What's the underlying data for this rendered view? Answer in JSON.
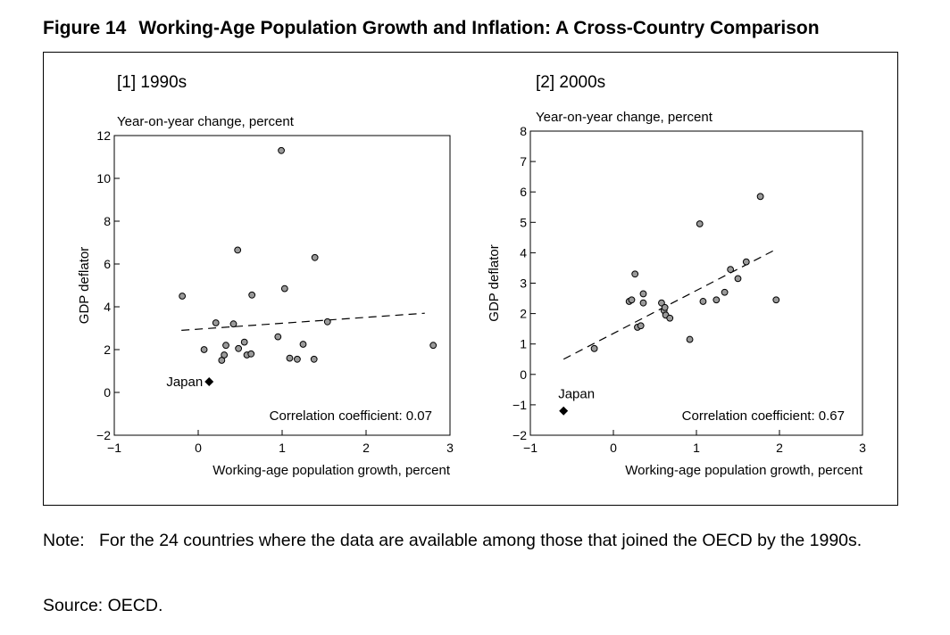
{
  "figure": {
    "number": "Figure 14",
    "title": "Working-Age Population Growth and Inflation: A Cross-Country Comparison"
  },
  "note": {
    "label": "Note:",
    "text": "For the 24 countries where the data are available among those that joined the OECD by the 1990s."
  },
  "source": "Source: OECD.",
  "colors": {
    "marker_fill": "#9a9a9a",
    "axis": "#000000",
    "japan": "#000000"
  },
  "chart_data": [
    {
      "type": "scatter",
      "title": "[1] 1990s",
      "unit_label": "Year-on-year change, percent",
      "ylabel": "GDP deflator",
      "xlabel": "Working-age population growth, percent",
      "xlim": [
        -1,
        3
      ],
      "ylim": [
        -2,
        12
      ],
      "xticks": [
        -1,
        0,
        1,
        2,
        3
      ],
      "yticks": [
        -2,
        0,
        2,
        4,
        6,
        8,
        10,
        12
      ],
      "xtick_labels": [
        "−1",
        "0",
        "1",
        "2",
        "3"
      ],
      "ytick_labels": [
        "−2",
        "0",
        "2",
        "4",
        "6",
        "8",
        "10",
        "12"
      ],
      "points": [
        {
          "x": -0.19,
          "y": 4.5
        },
        {
          "x": 0.07,
          "y": 2.0
        },
        {
          "x": 0.21,
          "y": 3.25
        },
        {
          "x": 0.28,
          "y": 1.5
        },
        {
          "x": 0.31,
          "y": 1.75
        },
        {
          "x": 0.33,
          "y": 2.2
        },
        {
          "x": 0.42,
          "y": 3.2
        },
        {
          "x": 0.47,
          "y": 6.65
        },
        {
          "x": 0.48,
          "y": 2.05
        },
        {
          "x": 0.55,
          "y": 2.35
        },
        {
          "x": 0.58,
          "y": 1.75
        },
        {
          "x": 0.63,
          "y": 1.8
        },
        {
          "x": 0.64,
          "y": 4.55
        },
        {
          "x": 0.95,
          "y": 2.6
        },
        {
          "x": 0.99,
          "y": 11.3
        },
        {
          "x": 1.03,
          "y": 4.85
        },
        {
          "x": 1.09,
          "y": 1.6
        },
        {
          "x": 1.18,
          "y": 1.55
        },
        {
          "x": 1.25,
          "y": 2.25
        },
        {
          "x": 1.38,
          "y": 1.55
        },
        {
          "x": 1.39,
          "y": 6.3
        },
        {
          "x": 1.54,
          "y": 3.3
        },
        {
          "x": 2.8,
          "y": 2.2
        }
      ],
      "japan": {
        "label": "Japan",
        "x": 0.13,
        "y": 0.5
      },
      "trendline": {
        "x": [
          -0.2,
          2.7
        ],
        "y": [
          2.9,
          3.7
        ]
      },
      "annotation": "Correlation coefficient: 0.07"
    },
    {
      "type": "scatter",
      "title": "[2] 2000s",
      "unit_label": "Year-on-year change, percent",
      "ylabel": "GDP deflator",
      "xlabel": "Working-age population growth, percent",
      "xlim": [
        -1,
        3
      ],
      "ylim": [
        -2,
        8
      ],
      "xticks": [
        -1,
        0,
        1,
        2,
        3
      ],
      "yticks": [
        -2,
        -1,
        0,
        1,
        2,
        3,
        4,
        5,
        6,
        7,
        8
      ],
      "xtick_labels": [
        "−1",
        "0",
        "1",
        "2",
        "3"
      ],
      "ytick_labels": [
        "−2",
        "−1",
        "0",
        "1",
        "2",
        "3",
        "4",
        "5",
        "6",
        "7",
        "8"
      ],
      "points": [
        {
          "x": -0.23,
          "y": 0.85
        },
        {
          "x": 0.19,
          "y": 2.4
        },
        {
          "x": 0.22,
          "y": 2.45
        },
        {
          "x": 0.26,
          "y": 3.3
        },
        {
          "x": 0.29,
          "y": 1.55
        },
        {
          "x": 0.33,
          "y": 1.6
        },
        {
          "x": 0.36,
          "y": 2.65
        },
        {
          "x": 0.36,
          "y": 2.35
        },
        {
          "x": 0.58,
          "y": 2.35
        },
        {
          "x": 0.61,
          "y": 2.1
        },
        {
          "x": 0.62,
          "y": 2.2
        },
        {
          "x": 0.63,
          "y": 1.95
        },
        {
          "x": 0.68,
          "y": 1.85
        },
        {
          "x": 0.92,
          "y": 1.15
        },
        {
          "x": 1.04,
          "y": 4.95
        },
        {
          "x": 1.08,
          "y": 2.4
        },
        {
          "x": 1.24,
          "y": 2.45
        },
        {
          "x": 1.34,
          "y": 2.7
        },
        {
          "x": 1.41,
          "y": 3.45
        },
        {
          "x": 1.5,
          "y": 3.15
        },
        {
          "x": 1.6,
          "y": 3.7
        },
        {
          "x": 1.77,
          "y": 5.85
        },
        {
          "x": 1.96,
          "y": 2.45
        }
      ],
      "japan": {
        "label": "Japan",
        "x": -0.6,
        "y": -1.2
      },
      "trendline": {
        "x": [
          -0.6,
          1.95
        ],
        "y": [
          0.5,
          4.1
        ]
      },
      "annotation": "Correlation coefficient: 0.67"
    }
  ]
}
